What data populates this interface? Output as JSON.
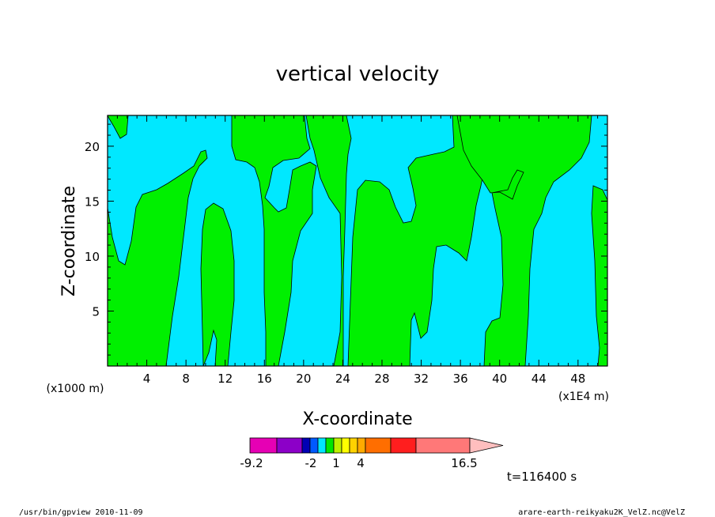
{
  "chart_data": {
    "type": "heatmap",
    "title": "vertical velocity",
    "xlabel": "X-coordinate",
    "ylabel": "Z-coordinate",
    "x_unit_left": "(x1000 m)",
    "x_unit_right": "(x1E4 m)",
    "x_ticks": [
      "4",
      "8",
      "12",
      "16",
      "20",
      "24",
      "28",
      "32",
      "36",
      "40",
      "44",
      "48"
    ],
    "y_ticks": [
      "5",
      "10",
      "15",
      "20"
    ],
    "xlim": [
      0,
      51
    ],
    "ylim": [
      0,
      22.8
    ],
    "colorbar": {
      "labels": [
        "-9.2",
        "-2",
        "1",
        "4",
        "16.5"
      ],
      "colors": [
        "#e600b4",
        "#8c00c8",
        "#0000b4",
        "#005aff",
        "#00e6ff",
        "#00e600",
        "#bef000",
        "#ffff00",
        "#ffd200",
        "#ffaa00",
        "#ff6e00",
        "#ff1e1e",
        "#ff7878",
        "#ffbebe"
      ]
    },
    "field_colors": {
      "positive": "#00f000",
      "negative": "#00e8ff"
    },
    "time_label": "t=116400 s"
  },
  "footer": {
    "left": "/usr/bin/gpview   2010-11-09",
    "right": "arare-earth-reikyaku2K_VelZ.nc@VelZ"
  }
}
